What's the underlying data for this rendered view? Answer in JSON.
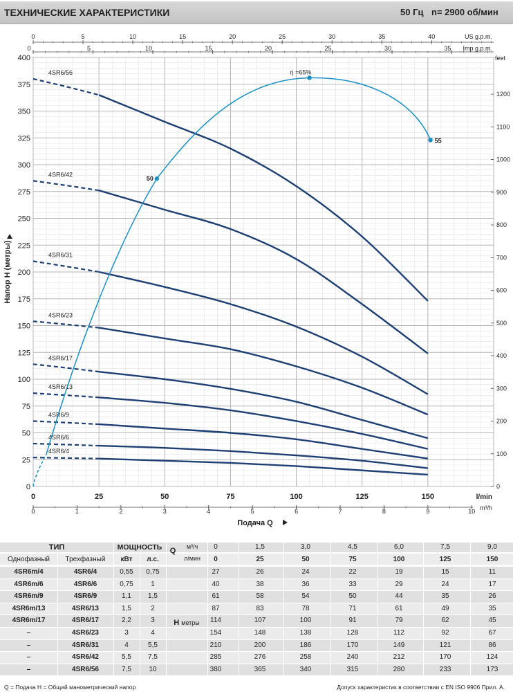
{
  "header": {
    "title": "ТЕХНИЧЕСКИЕ ХАРАКТЕРИСТИКИ",
    "frequency": "50 Гц",
    "speed": "n= 2900 об/мин"
  },
  "chart_data": {
    "type": "line",
    "ylabel": "Напор Н (метры)",
    "xlabel": "Подача Q",
    "x_unit": "l/min",
    "xlim": [
      0,
      175
    ],
    "ylim": [
      0,
      400
    ],
    "x_ticks": [
      0,
      25,
      50,
      75,
      100,
      125,
      150
    ],
    "y_ticks": [
      0,
      25,
      50,
      75,
      100,
      125,
      150,
      175,
      200,
      225,
      250,
      275,
      300,
      325,
      350,
      375,
      400
    ],
    "secondary_axes": {
      "us_gpm": {
        "unit": "US g.p.m.",
        "ticks": [
          0,
          5,
          10,
          15,
          20,
          25,
          30,
          35,
          40
        ]
      },
      "imp_gpm": {
        "unit": "Imp g.p.m.",
        "ticks": [
          0,
          5,
          10,
          15,
          20,
          25,
          30,
          35
        ]
      },
      "feet": {
        "unit": "feet",
        "ticks": [
          0,
          100,
          200,
          300,
          400,
          500,
          600,
          700,
          800,
          900,
          1000,
          1100,
          1200
        ]
      },
      "m3h": {
        "unit": "m³/h",
        "ticks": [
          0,
          1,
          2,
          3,
          4,
          5,
          6,
          7,
          8,
          9,
          10
        ]
      }
    },
    "x": [
      0,
      25,
      50,
      75,
      100,
      125,
      150
    ],
    "series": [
      {
        "name": "4SR6/56",
        "values": [
          380,
          365,
          340,
          315,
          280,
          233,
          173
        ]
      },
      {
        "name": "4SR6/42",
        "values": [
          285,
          276,
          258,
          240,
          212,
          170,
          124
        ]
      },
      {
        "name": "4SR6/31",
        "values": [
          210,
          200,
          186,
          170,
          149,
          121,
          86
        ]
      },
      {
        "name": "4SR6/23",
        "values": [
          154,
          148,
          138,
          128,
          112,
          92,
          67
        ]
      },
      {
        "name": "4SR6/17",
        "values": [
          114,
          107,
          100,
          91,
          79,
          62,
          45
        ]
      },
      {
        "name": "4SR6/13",
        "values": [
          87,
          83,
          78,
          71,
          61,
          49,
          35
        ]
      },
      {
        "name": "4SR6/9",
        "values": [
          61,
          58,
          54,
          50,
          44,
          35,
          26
        ]
      },
      {
        "name": "4SR6/6",
        "values": [
          40,
          38,
          36,
          33,
          29,
          24,
          17
        ]
      },
      {
        "name": "4SR6/4",
        "values": [
          27,
          26,
          24,
          22,
          19,
          15,
          11
        ]
      }
    ],
    "efficiency_curve": {
      "label": "η =65%",
      "points": [
        {
          "q": 47,
          "h": 287,
          "label": "50"
        },
        {
          "q": 105,
          "h": 381,
          "label": ""
        },
        {
          "q": 151,
          "h": 323,
          "label": "55"
        }
      ],
      "start": {
        "q": 0,
        "h": 0
      }
    }
  },
  "table": {
    "type_header": "ТИП",
    "power_header": "МОЩНОСТЬ",
    "single_phase": "Однофазный",
    "three_phase": "Трехфазный",
    "kw": "кВт",
    "hp": "л.с.",
    "q_label": "Q",
    "q_unit_m3": "м³/ч",
    "q_unit_lmin": "л/мин",
    "h_label": "Н",
    "h_unit": "метры",
    "q_m3": [
      "0",
      "1,5",
      "3,0",
      "4,5",
      "6,0",
      "7,5",
      "9,0"
    ],
    "q_lmin": [
      "0",
      "25",
      "50",
      "75",
      "100",
      "125",
      "150"
    ],
    "rows": [
      {
        "single": "4SR6m/4",
        "three": "4SR6/4",
        "kw": "0,55",
        "hp": "0,75",
        "h": [
          "27",
          "26",
          "24",
          "22",
          "19",
          "15",
          "11"
        ]
      },
      {
        "single": "4SR6m/6",
        "three": "4SR6/6",
        "kw": "0,75",
        "hp": "1",
        "h": [
          "40",
          "38",
          "36",
          "33",
          "29",
          "24",
          "17"
        ]
      },
      {
        "single": "4SR6m/9",
        "three": "4SR6/9",
        "kw": "1,1",
        "hp": "1,5",
        "h": [
          "61",
          "58",
          "54",
          "50",
          "44",
          "35",
          "26"
        ]
      },
      {
        "single": "4SR6m/13",
        "three": "4SR6/13",
        "kw": "1,5",
        "hp": "2",
        "h": [
          "87",
          "83",
          "78",
          "71",
          "61",
          "49",
          "35"
        ]
      },
      {
        "single": "4SR6m/17",
        "three": "4SR6/17",
        "kw": "2,2",
        "hp": "3",
        "h": [
          "114",
          "107",
          "100",
          "91",
          "79",
          "62",
          "45"
        ]
      },
      {
        "single": "–",
        "three": "4SR6/23",
        "kw": "3",
        "hp": "4",
        "h": [
          "154",
          "148",
          "138",
          "128",
          "112",
          "92",
          "67"
        ]
      },
      {
        "single": "–",
        "three": "4SR6/31",
        "kw": "4",
        "hp": "5,5",
        "h": [
          "210",
          "200",
          "186",
          "170",
          "149",
          "121",
          "86"
        ]
      },
      {
        "single": "–",
        "three": "4SR6/42",
        "kw": "5,5",
        "hp": "7,5",
        "h": [
          "285",
          "276",
          "258",
          "240",
          "212",
          "170",
          "124"
        ]
      },
      {
        "single": "–",
        "three": "4SR6/56",
        "kw": "7,5",
        "hp": "10",
        "h": [
          "380",
          "365",
          "340",
          "315",
          "280",
          "233",
          "173"
        ]
      }
    ]
  },
  "footer": {
    "left": "Q = Подача  H = Общий манометрический напор",
    "right": "Допуск характеристик в соответствии с EN ISO 9906 Прил. A."
  },
  "colors": {
    "curve": "#1d3f73",
    "efficiency": "#1a8fc4",
    "grid": "#c8c8c8",
    "header_bg": "#cfcfcf",
    "row_band": "#e6e6e6"
  }
}
